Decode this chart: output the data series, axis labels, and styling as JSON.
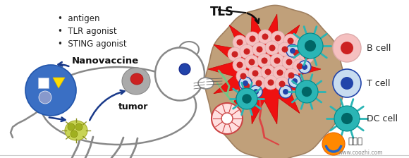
{
  "bg_color": "#ffffff",
  "text_bullet1": "•  antigen",
  "text_bullet2": "•  TLR agonist",
  "text_bullet3": "•  STING agonist",
  "text_nanovaccine": "Nanovaccine",
  "text_tumor": "tumor",
  "text_tls": "TLS",
  "text_bcell": "B cell",
  "text_tcell": "T cell",
  "text_dccell": "DC cell",
  "text_url": "www.coozhi.com",
  "text_kuzhi": "酷知网",
  "mouse_edge": "#888888",
  "nav_blue": "#3a6fc4",
  "nav_blue_dark": "#2255aa",
  "tls_brown": "#c0a07a",
  "tls_brown_dark": "#a08060",
  "tls_red": "#ee1111",
  "tls_red_dark": "#cc0000",
  "bcell_outer": "#f5c0c0",
  "bcell_inner": "#cc2222",
  "tcell_outer": "#c8dcf0",
  "tcell_inner": "#2244aa",
  "dcell_teal": "#2ab5b5",
  "vessel_green": "#66cc88",
  "vessel_red": "#dd4444",
  "orange_logo": "#ff8800",
  "blue_logo": "#2266cc",
  "arrow_blue": "#1a3a8a",
  "arrow_black": "#111111"
}
